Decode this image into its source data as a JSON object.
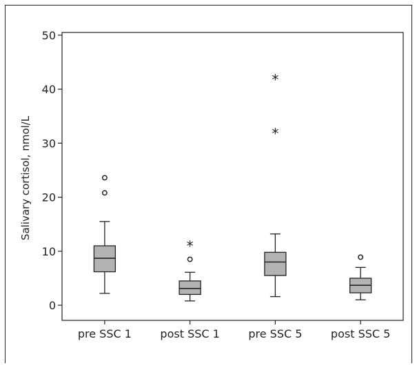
{
  "chart_data": {
    "type": "boxplot",
    "title": "",
    "xlabel": "",
    "ylabel": "Salivary cortisol, nmol/L",
    "ylim": [
      -2.8,
      50.5
    ],
    "yticks": [
      0,
      10,
      20,
      30,
      40,
      50
    ],
    "categories": [
      "pre SSC 1",
      "post SSC 1",
      "pre SSC 5",
      "post SSC 5"
    ],
    "box_color": "#b3b3b3",
    "line_color": "#222222",
    "boxes": [
      {
        "category": "pre SSC 1",
        "whisker_low": 2.2,
        "q1": 6.2,
        "median": 8.7,
        "q3": 11.0,
        "whisker_high": 15.5,
        "outliers": [
          {
            "value": 20.8,
            "marker": "circle"
          },
          {
            "value": 23.6,
            "marker": "circle"
          }
        ]
      },
      {
        "category": "post SSC 1",
        "whisker_low": 0.8,
        "q1": 2.0,
        "median": 3.1,
        "q3": 4.5,
        "whisker_high": 6.1,
        "outliers": [
          {
            "value": 8.5,
            "marker": "circle"
          },
          {
            "value": 11.2,
            "marker": "star"
          }
        ]
      },
      {
        "category": "pre SSC 5",
        "whisker_low": 1.6,
        "q1": 5.5,
        "median": 8.0,
        "q3": 9.8,
        "whisker_high": 13.2,
        "outliers": [
          {
            "value": 32.0,
            "marker": "star"
          },
          {
            "value": 42.0,
            "marker": "star"
          }
        ]
      },
      {
        "category": "post SSC 5",
        "whisker_low": 1.0,
        "q1": 2.3,
        "median": 3.7,
        "q3": 5.0,
        "whisker_high": 7.0,
        "outliers": [
          {
            "value": 8.9,
            "marker": "circle"
          }
        ]
      }
    ]
  }
}
